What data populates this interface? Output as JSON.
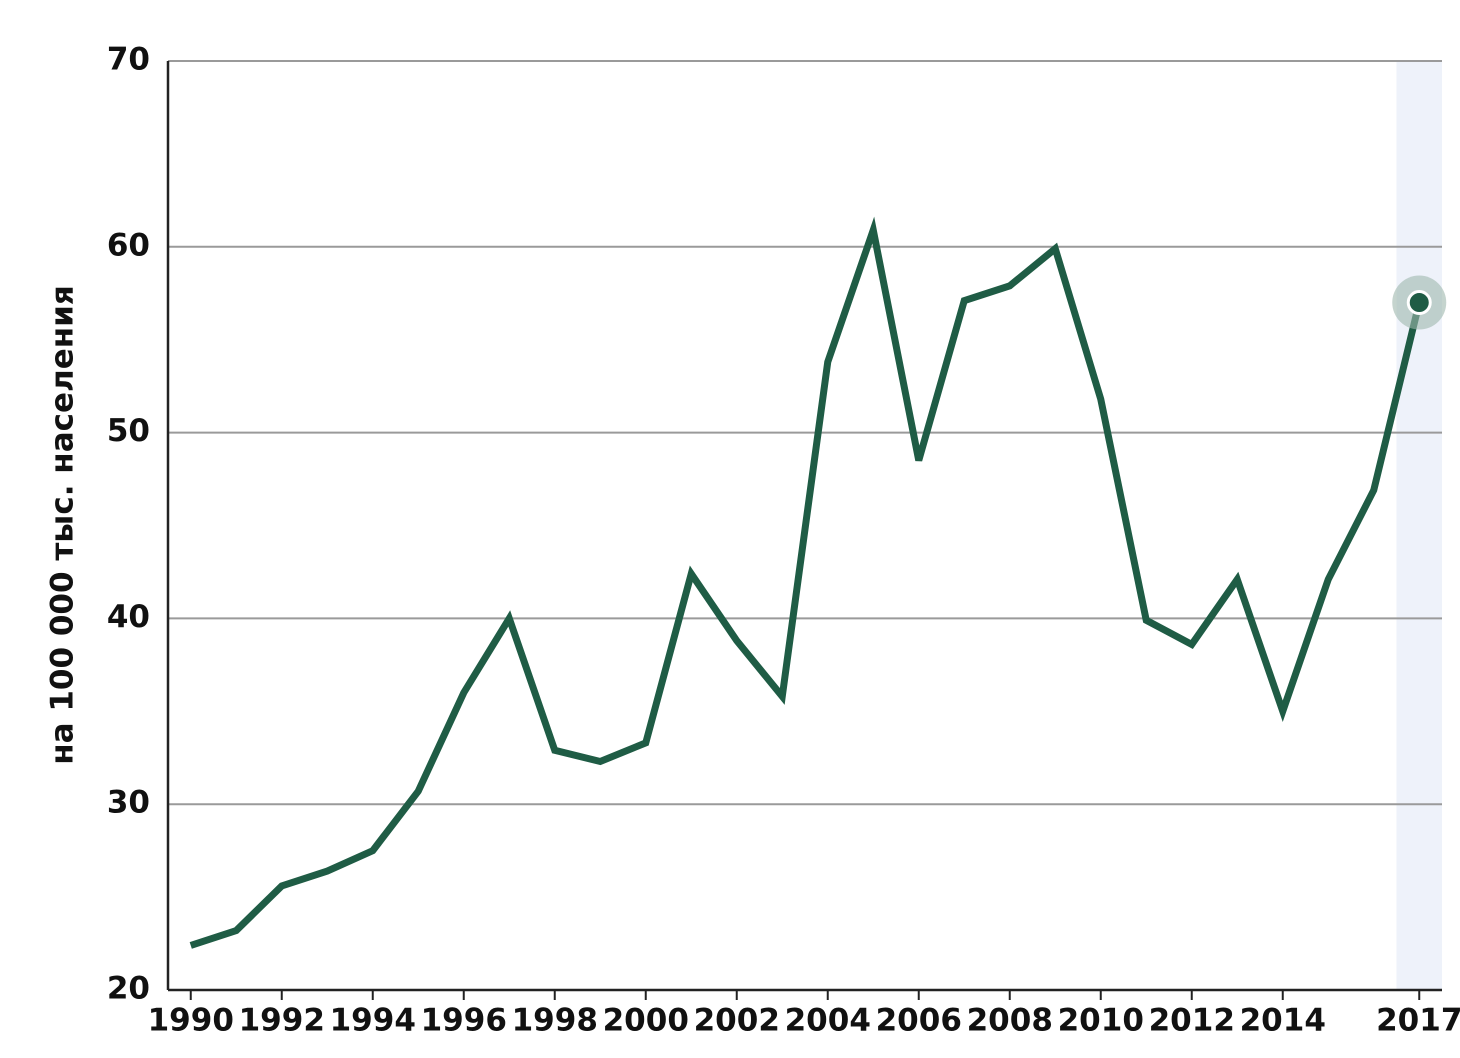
{
  "chart_data": {
    "type": "line",
    "y_label": "на 100 000 тыс. населения",
    "x": [
      1990,
      1991,
      1992,
      1993,
      1994,
      1995,
      1996,
      1997,
      1998,
      1999,
      2000,
      2001,
      2002,
      2003,
      2004,
      2005,
      2006,
      2007,
      2008,
      2009,
      2010,
      2011,
      2012,
      2013,
      2014,
      2015,
      2016,
      2017
    ],
    "series": [
      {
        "color": "#1f5c45",
        "values": [
          22.4,
          23.2,
          25.6,
          26.4,
          27.5,
          30.7,
          36.0,
          40.0,
          32.9,
          32.3,
          33.3,
          42.4,
          38.8,
          35.8,
          53.8,
          60.9,
          48.5,
          57.1,
          57.9,
          59.9,
          51.8,
          39.9,
          38.6,
          42.1,
          35.0,
          42.1,
          46.9,
          57.0
        ]
      }
    ],
    "xlim": [
      1989.5,
      2017.5
    ],
    "xticks": [
      1990,
      1992,
      1994,
      1996,
      1998,
      2000,
      2002,
      2004,
      2006,
      2008,
      2010,
      2012,
      2014,
      2017
    ],
    "ylim": [
      20,
      70
    ],
    "yticks": [
      20,
      30,
      40,
      50,
      60,
      70
    ],
    "grid": true,
    "highlight": 2017
  }
}
